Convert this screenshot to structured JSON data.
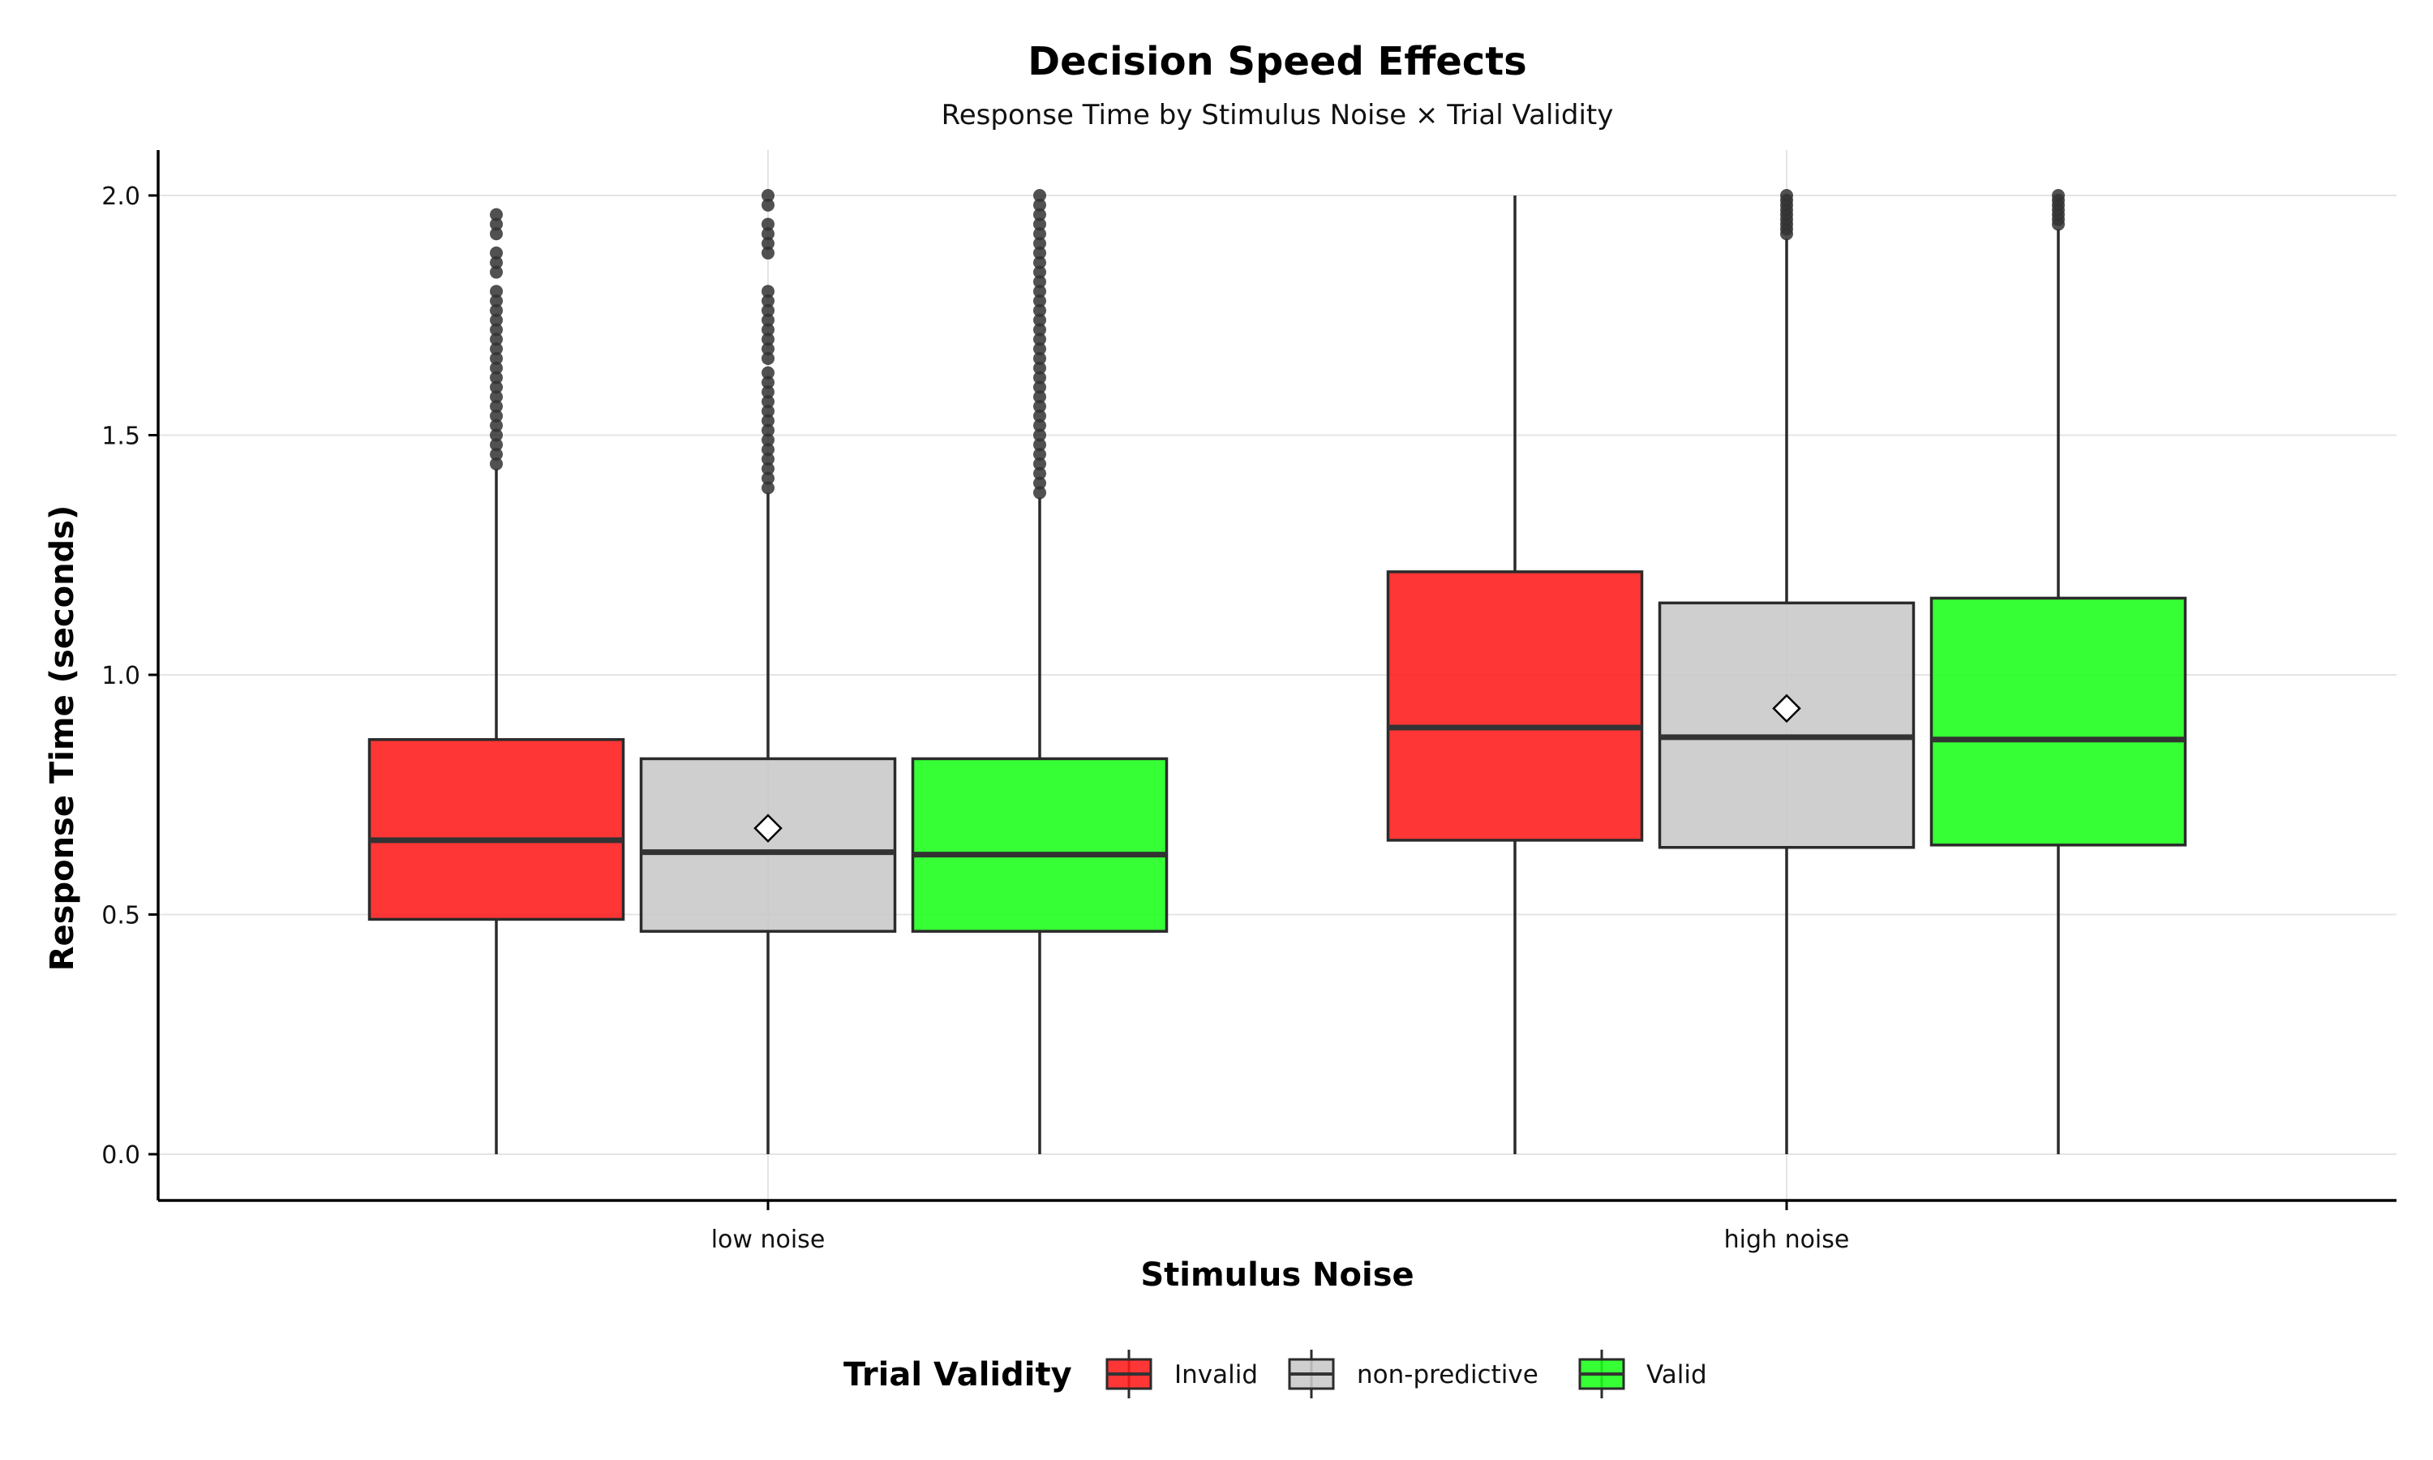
{
  "chart_data": {
    "type": "box",
    "title": "Decision Speed Effects",
    "subtitle": "Response Time by Stimulus Noise × Trial Validity",
    "xlabel": "Stimulus Noise",
    "ylabel": "Response Time (seconds)",
    "ylim": [
      -0.1,
      2.1
    ],
    "yticks": [
      0.0,
      0.5,
      1.0,
      1.5,
      2.0
    ],
    "ytick_labels": [
      "0.0",
      "0.5",
      "1.0",
      "1.5",
      "2.0"
    ],
    "grid": true,
    "legend_position": "bottom",
    "legend_title": "Trial Validity",
    "categories": [
      "low noise",
      "high noise"
    ],
    "series": [
      {
        "name": "Invalid",
        "color": "#ff1a1a",
        "boxes": [
          {
            "whisker_low": 0.0,
            "q1": 0.49,
            "median": 0.655,
            "q3": 0.865,
            "whisker_high": 1.43,
            "outliers": [
              1.44,
              1.46,
              1.48,
              1.5,
              1.52,
              1.54,
              1.56,
              1.58,
              1.6,
              1.62,
              1.64,
              1.66,
              1.68,
              1.7,
              1.72,
              1.74,
              1.76,
              1.78,
              1.8,
              1.84,
              1.86,
              1.88,
              1.92,
              1.94,
              1.96
            ]
          },
          {
            "whisker_low": 0.0,
            "q1": 0.655,
            "median": 0.89,
            "q3": 1.215,
            "whisker_high": 2.0,
            "outliers": []
          }
        ]
      },
      {
        "name": "non-predictive",
        "color": "#c8c8c8",
        "boxes": [
          {
            "whisker_low": 0.0,
            "q1": 0.465,
            "median": 0.63,
            "q3": 0.825,
            "whisker_high": 1.38,
            "mean": 0.68,
            "outliers": [
              1.39,
              1.41,
              1.43,
              1.45,
              1.47,
              1.49,
              1.51,
              1.53,
              1.55,
              1.57,
              1.59,
              1.61,
              1.63,
              1.66,
              1.68,
              1.7,
              1.72,
              1.74,
              1.76,
              1.78,
              1.8,
              1.88,
              1.9,
              1.92,
              1.94,
              1.98,
              2.0
            ]
          },
          {
            "whisker_low": 0.0,
            "q1": 0.64,
            "median": 0.87,
            "q3": 1.15,
            "whisker_high": 1.91,
            "mean": 0.93,
            "outliers": [
              1.92,
              1.93,
              1.94,
              1.95,
              1.96,
              1.97,
              1.98,
              1.99,
              2.0
            ]
          }
        ]
      },
      {
        "name": "Valid",
        "color": "#1aff1a",
        "boxes": [
          {
            "whisker_low": 0.0,
            "q1": 0.465,
            "median": 0.625,
            "q3": 0.825,
            "whisker_high": 1.37,
            "outliers": [
              1.38,
              1.4,
              1.42,
              1.44,
              1.46,
              1.48,
              1.5,
              1.52,
              1.54,
              1.56,
              1.58,
              1.6,
              1.62,
              1.64,
              1.66,
              1.68,
              1.7,
              1.72,
              1.74,
              1.76,
              1.78,
              1.8,
              1.82,
              1.84,
              1.86,
              1.88,
              1.9,
              1.92,
              1.94,
              1.96,
              1.98,
              2.0
            ]
          },
          {
            "whisker_low": 0.0,
            "q1": 0.645,
            "median": 0.865,
            "q3": 1.16,
            "whisker_high": 1.93,
            "outliers": [
              1.94,
              1.95,
              1.96,
              1.97,
              1.98,
              1.99,
              2.0
            ]
          }
        ]
      }
    ]
  }
}
